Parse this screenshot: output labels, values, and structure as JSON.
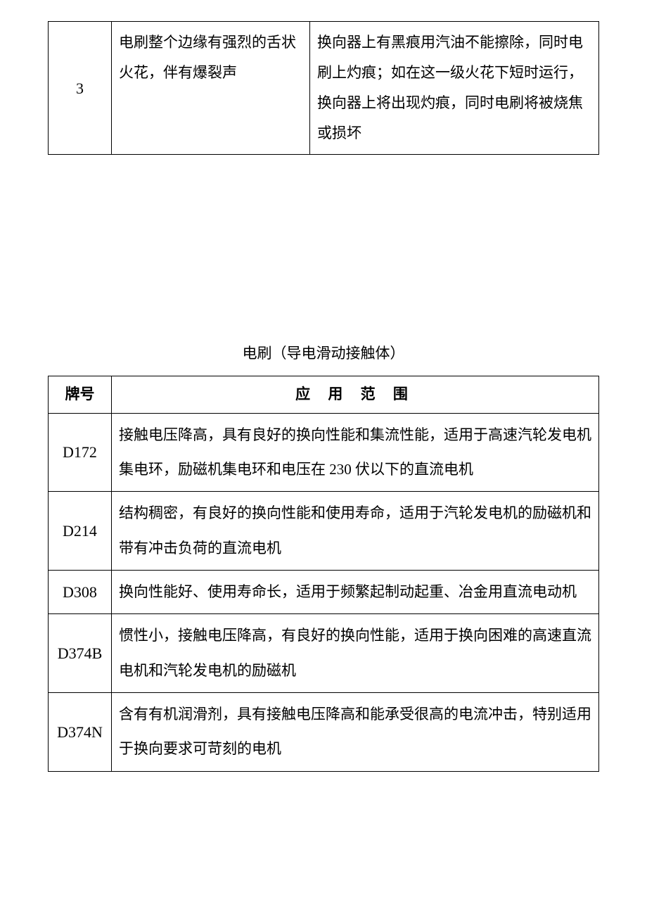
{
  "table1": {
    "row": {
      "id": "3",
      "description": "电刷整个边缘有强烈的舌状火花，伴有爆裂声",
      "note": "换向器上有黑痕用汽油不能擦除，同时电刷上灼痕；如在这一级火花下短时运行，换向器上将出现灼痕，同时电刷将被烧焦或损坏"
    }
  },
  "section_title": "电刷（导电滑动接触体）",
  "table2": {
    "headers": {
      "grade": "牌号",
      "range": "应 用 范 围"
    },
    "rows": [
      {
        "grade": "D172",
        "range": "接触电压降高，具有良好的换向性能和集流性能，适用于高速汽轮发电机集电环，励磁机集电环和电压在 230 伏以下的直流电机"
      },
      {
        "grade": "D214",
        "range": "结构稠密，有良好的换向性能和使用寿命，适用于汽轮发电机的励磁机和带有冲击负荷的直流电机"
      },
      {
        "grade": "D308",
        "range": "换向性能好、使用寿命长，适用于频繁起制动起重、冶金用直流电动机"
      },
      {
        "grade": "D374B",
        "range": "惯性小，接触电压降高，有良好的换向性能，适用于换向困难的高速直流电机和汽轮发电机的励磁机"
      },
      {
        "grade": "D374N",
        "range": "含有有机润滑剂，具有接触电压降高和能承受很高的电流冲击，特别适用于换向要求可苛刻的电机"
      }
    ]
  }
}
